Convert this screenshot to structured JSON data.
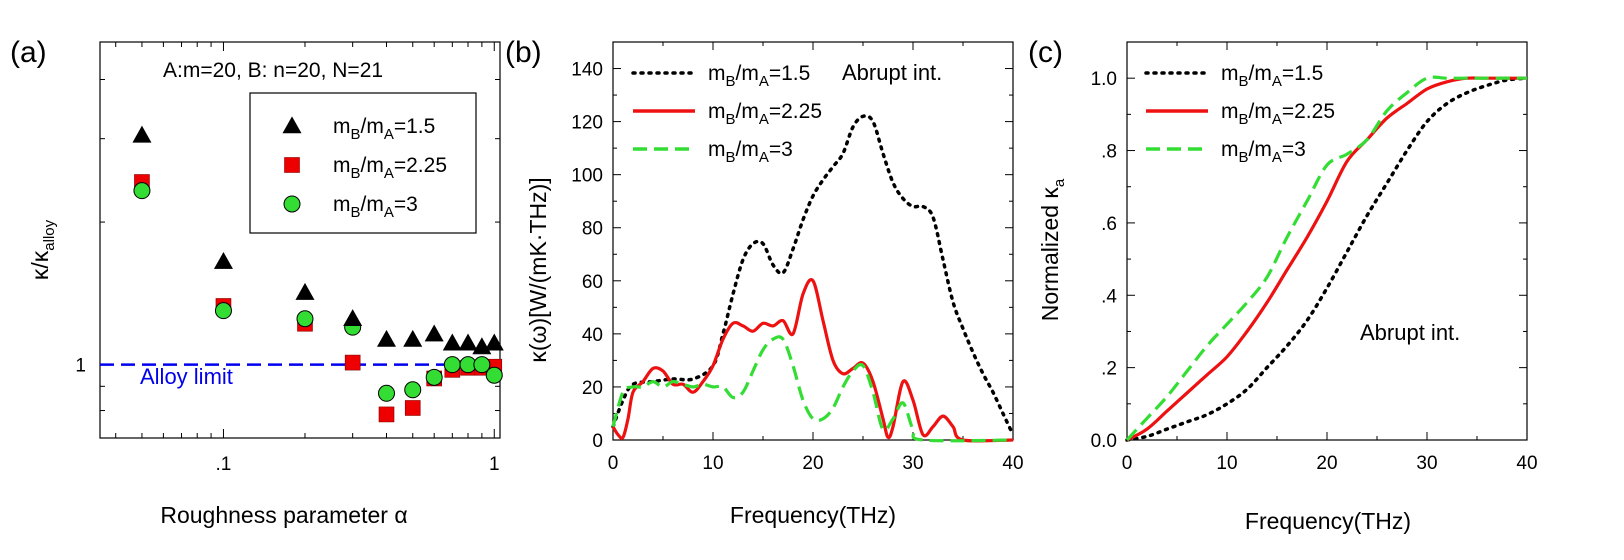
{
  "chart_data": [
    {
      "panel": "(a)",
      "type": "scatter",
      "xscale": "log",
      "yscale": "log",
      "xlim": [
        0.035,
        1.05
      ],
      "ylim": [
        0.7,
        4.8
      ],
      "xlabel": "Roughness parameter α",
      "ylabel": "κ/κalloy",
      "xticks": [
        0.1,
        1
      ],
      "xtick_labels": [
        ".1",
        "1"
      ],
      "yticks": [
        1
      ],
      "ytick_labels": [
        "1"
      ],
      "title": "A:m=20, B: n=20, N=21",
      "reference_line": {
        "y": 1,
        "label": "Alloy limit",
        "color": "#0000ee",
        "style": "dashed"
      },
      "legend_position": "top-right",
      "series": [
        {
          "name": "mB/mA=1.5",
          "label_main": "m",
          "label_sub1": "B",
          "label_mid": "/m",
          "label_sub2": "A",
          "label_tail": "=1.5",
          "marker": "triangle",
          "color": "#000000",
          "x": [
            0.05,
            0.1,
            0.2,
            0.3,
            0.4,
            0.5,
            0.6,
            0.7,
            0.8,
            0.9,
            1.0
          ],
          "y": [
            3.05,
            1.65,
            1.42,
            1.25,
            1.13,
            1.13,
            1.16,
            1.11,
            1.11,
            1.09,
            1.11
          ]
        },
        {
          "name": "mB/mA=2.25",
          "label_main": "m",
          "label_sub1": "B",
          "label_mid": "/m",
          "label_sub2": "A",
          "label_tail": "=2.25",
          "marker": "square",
          "color": "#ee0000",
          "x": [
            0.05,
            0.1,
            0.2,
            0.3,
            0.4,
            0.5,
            0.6,
            0.7,
            0.8,
            0.9,
            1.0
          ],
          "y": [
            2.43,
            1.33,
            1.22,
            1.01,
            0.785,
            0.81,
            0.935,
            0.975,
            0.985,
            0.985,
            0.99
          ]
        },
        {
          "name": "mB/mA=3",
          "label_main": "m",
          "label_sub1": "B",
          "label_mid": "/m",
          "label_sub2": "A",
          "label_tail": "=3",
          "marker": "circle",
          "color": "#33dd33",
          "x": [
            0.05,
            0.1,
            0.2,
            0.3,
            0.4,
            0.5,
            0.6,
            0.7,
            0.8,
            0.9,
            1.0
          ],
          "y": [
            2.33,
            1.3,
            1.25,
            1.2,
            0.87,
            0.885,
            0.94,
            1.0,
            1.0,
            1.0,
            0.95
          ]
        }
      ]
    },
    {
      "panel": "(b)",
      "type": "line",
      "xlim": [
        0,
        40
      ],
      "ylim": [
        0,
        150
      ],
      "xlabel": "Frequency(THz)",
      "ylabel": "κ(ω)[W/(mK·THz)]",
      "xticks": [
        0,
        10,
        20,
        30,
        40
      ],
      "yticks": [
        0,
        20,
        40,
        60,
        80,
        100,
        120,
        140
      ],
      "annotation": "Abrupt int.",
      "legend_position": "top-left",
      "series": [
        {
          "name": "mB/mA=1.5",
          "label_main": "m",
          "label_sub1": "B",
          "label_mid": "/m",
          "label_sub2": "A",
          "label_tail": "=1.5",
          "color": "#000000",
          "style": "dotted",
          "x": [
            0,
            1,
            2,
            4,
            6,
            8,
            10,
            11,
            12,
            13,
            14,
            15,
            16,
            17,
            18,
            19,
            20,
            21,
            22,
            23,
            24,
            25,
            26,
            27,
            28,
            29,
            30,
            31,
            32,
            33,
            34,
            35,
            36,
            37,
            38,
            39,
            40
          ],
          "y": [
            5,
            15,
            21,
            22,
            23,
            23,
            28,
            40,
            55,
            68,
            74,
            74,
            66,
            63,
            72,
            83,
            92,
            98,
            103,
            108,
            118,
            122,
            120,
            108,
            97,
            91,
            88,
            88,
            84,
            68,
            52,
            42,
            33,
            25,
            18,
            10,
            2
          ]
        },
        {
          "name": "mB/mA=2.25",
          "label_main": "m",
          "label_sub1": "B",
          "label_mid": "/m",
          "label_sub2": "A",
          "label_tail": "=2.25",
          "color": "#ee1111",
          "style": "solid",
          "x": [
            0,
            0.5,
            1,
            1.5,
            2,
            3,
            4,
            5,
            6,
            7,
            8,
            9,
            10,
            11,
            12,
            13,
            14,
            15,
            16,
            17,
            18,
            19,
            20,
            21,
            22,
            23,
            24,
            25,
            26,
            27,
            27.5,
            28,
            29,
            30,
            31,
            32,
            33,
            34,
            35,
            40
          ],
          "y": [
            5,
            2,
            1,
            8,
            18,
            22,
            27,
            26,
            21,
            21,
            18,
            22,
            28,
            38,
            44,
            43,
            41,
            44,
            43,
            45,
            40,
            55,
            60,
            45,
            30,
            25,
            27,
            29,
            22,
            8,
            1,
            5,
            22,
            15,
            2,
            5,
            9,
            5,
            0,
            0
          ]
        },
        {
          "name": "mB/mA=3",
          "label_main": "m",
          "label_sub1": "B",
          "label_mid": "/m",
          "label_sub2": "A",
          "label_tail": "=3",
          "color": "#33dd33",
          "style": "dashed",
          "x": [
            0,
            1,
            2,
            3,
            4,
            5,
            6,
            7,
            8,
            9,
            10,
            11,
            12,
            13,
            14,
            15,
            16,
            17,
            18,
            19,
            20,
            21,
            22,
            23,
            24,
            25,
            26,
            27,
            28,
            29,
            30,
            31,
            40
          ],
          "y": [
            5,
            18,
            20,
            20,
            22,
            20,
            22,
            21,
            20,
            21,
            20,
            20,
            16,
            18,
            26,
            34,
            38,
            38,
            28,
            15,
            8,
            8,
            12,
            20,
            26,
            28,
            18,
            4,
            8,
            14,
            4,
            0,
            0
          ]
        }
      ]
    },
    {
      "panel": "(c)",
      "type": "line",
      "xlim": [
        0,
        40
      ],
      "ylim": [
        0,
        1.1
      ],
      "xlabel": "Frequency(THz)",
      "ylabel": "Normalized κa",
      "ylabel_main": "Normalized κ",
      "ylabel_sub": "a",
      "xticks": [
        0,
        10,
        20,
        30,
        40
      ],
      "yticks": [
        0,
        0.2,
        0.4,
        0.6,
        0.8,
        1.0
      ],
      "ytick_labels": [
        "0.0",
        ".2",
        ".4",
        ".6",
        ".8",
        "1.0"
      ],
      "annotation": "Abrupt int.",
      "legend_position": "top-left",
      "series": [
        {
          "name": "mB/mA=1.5",
          "label_main": "m",
          "label_sub1": "B",
          "label_mid": "/m",
          "label_sub2": "A",
          "label_tail": "=1.5",
          "color": "#000000",
          "style": "dotted",
          "x": [
            0,
            2,
            4,
            6,
            8,
            10,
            12,
            14,
            16,
            18,
            20,
            22,
            24,
            26,
            28,
            30,
            32,
            34,
            36,
            38,
            40
          ],
          "y": [
            0,
            0.01,
            0.03,
            0.05,
            0.07,
            0.1,
            0.14,
            0.2,
            0.26,
            0.33,
            0.42,
            0.52,
            0.62,
            0.71,
            0.8,
            0.88,
            0.93,
            0.96,
            0.98,
            0.995,
            1.0
          ]
        },
        {
          "name": "mB/mA=2.25",
          "label_main": "m",
          "label_sub1": "B",
          "label_mid": "/m",
          "label_sub2": "A",
          "label_tail": "=2.25",
          "color": "#ee1111",
          "style": "solid",
          "x": [
            0,
            2,
            4,
            6,
            8,
            10,
            12,
            14,
            16,
            18,
            20,
            22,
            24,
            26,
            28,
            30,
            32,
            34,
            36,
            40
          ],
          "y": [
            0,
            0.03,
            0.08,
            0.13,
            0.18,
            0.23,
            0.3,
            0.38,
            0.47,
            0.56,
            0.66,
            0.77,
            0.83,
            0.89,
            0.93,
            0.97,
            0.99,
            1.0,
            1.0,
            1.0
          ]
        },
        {
          "name": "mB/mA=3",
          "label_main": "m",
          "label_sub1": "B",
          "label_mid": "/m",
          "label_sub2": "A",
          "label_tail": "=3",
          "color": "#33dd33",
          "style": "dashed",
          "x": [
            0,
            2,
            4,
            6,
            8,
            10,
            12,
            14,
            16,
            18,
            20,
            22,
            24,
            26,
            28,
            30,
            32,
            34,
            40
          ],
          "y": [
            0,
            0.06,
            0.12,
            0.19,
            0.26,
            0.32,
            0.38,
            0.45,
            0.56,
            0.66,
            0.76,
            0.79,
            0.83,
            0.91,
            0.96,
            1.0,
            1.0,
            1.0,
            1.0
          ]
        }
      ]
    }
  ]
}
